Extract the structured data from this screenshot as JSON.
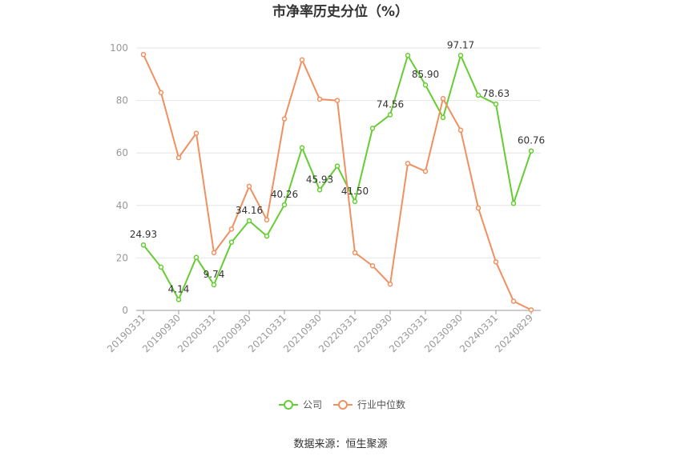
{
  "chart_data": {
    "type": "line",
    "title": "市净率历史分位（%）",
    "source": "数据来源：恒生聚源",
    "ylim": [
      0,
      100
    ],
    "yticks": [
      0,
      20,
      40,
      60,
      80,
      100
    ],
    "grid": true,
    "legend_position": "bottom",
    "x": [
      "20190331",
      "20190630",
      "20190930",
      "20191231",
      "20200331",
      "20200630",
      "20200930",
      "20201231",
      "20210331",
      "20210630",
      "20210930",
      "20211231",
      "20220331",
      "20220630",
      "20220930",
      "20221231",
      "20230331",
      "20230630",
      "20230930",
      "20231231",
      "20240331",
      "20240630",
      "20240829"
    ],
    "x_tick_labels": [
      "20190331",
      "20190930",
      "20200331",
      "20200930",
      "20210331",
      "20210930",
      "20220331",
      "20220930",
      "20230331",
      "20230930",
      "20240331",
      "20240829"
    ],
    "series": [
      {
        "name": "公司",
        "color": "#66cc33",
        "values": [
          24.93,
          16.5,
          4.14,
          20.2,
          9.74,
          26.0,
          34.16,
          28.3,
          40.26,
          62.0,
          45.93,
          55.0,
          41.5,
          69.4,
          74.56,
          97.17,
          85.9,
          73.5,
          97.17,
          82.0,
          78.63,
          40.8,
          60.76
        ],
        "labels": [
          "24.93",
          "",
          "4.14",
          "",
          "9.74",
          "",
          "34.16",
          "",
          "40.26",
          "",
          "45.93",
          "",
          "41.50",
          "",
          "74.56",
          "",
          "85.90",
          "",
          "97.17",
          "",
          "78.63",
          "",
          "60.76"
        ]
      },
      {
        "name": "行业中位数",
        "color": "#f09060",
        "values": [
          97.5,
          83.0,
          58.2,
          67.5,
          22.0,
          31.0,
          47.3,
          34.5,
          73.0,
          95.5,
          80.5,
          80.0,
          22.0,
          17.0,
          10.0,
          56.0,
          53.0,
          80.7,
          68.7,
          39.0,
          18.5,
          3.5,
          0.2
        ],
        "labels": []
      }
    ]
  }
}
